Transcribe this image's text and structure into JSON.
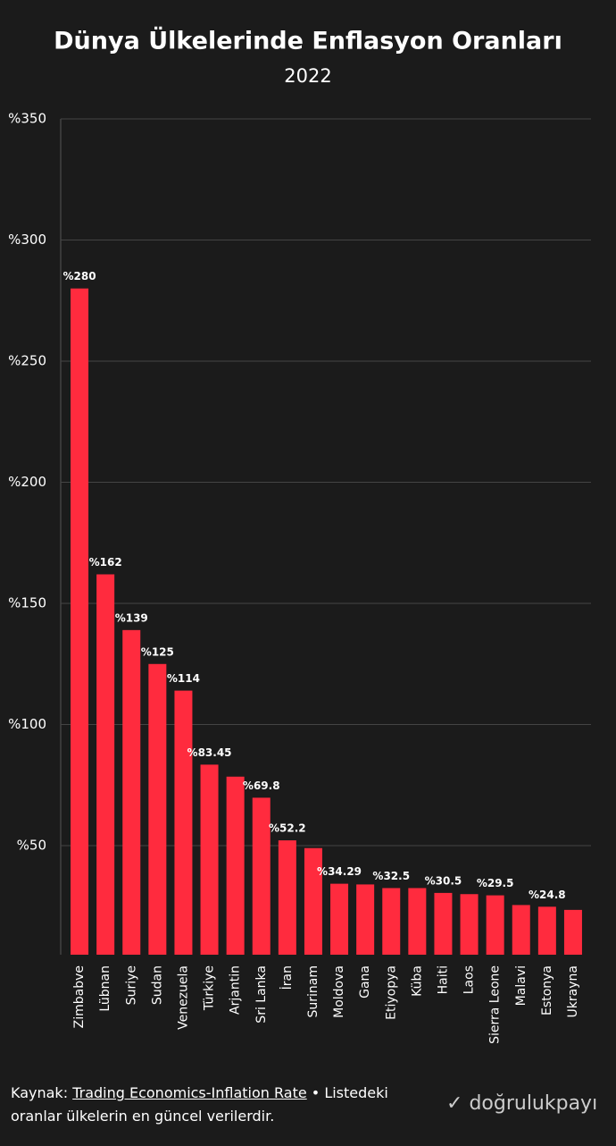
{
  "chart_data": {
    "type": "bar",
    "title": "Dünya Ülkelerinde Enflasyon Oranları",
    "subtitle": "2022",
    "categories": [
      "Zimbabve",
      "Lübnan",
      "Suriye",
      "Sudan",
      "Venezuela",
      "Türkiye",
      "Arjantin",
      "Sri Lanka",
      "İran",
      "Surinam",
      "Moldova",
      "Gana",
      "Etiyopya",
      "Küba",
      "Haiti",
      "Laos",
      "Sierra Leone",
      "Malavi",
      "Estonya",
      "Ukrayna"
    ],
    "values": [
      280,
      162,
      139,
      125,
      114,
      83.45,
      78.5,
      69.8,
      52.2,
      49,
      34.29,
      34,
      32.5,
      32.5,
      30.5,
      30,
      29.5,
      25.5,
      24.8,
      23.5
    ],
    "value_labels": [
      "%280",
      "%162",
      "%139",
      "%125",
      "%114",
      "%83.45",
      null,
      "%69.8",
      "%52.2",
      null,
      "%34.29",
      null,
      "%32.5",
      null,
      "%30.5",
      null,
      "%29.5",
      null,
      "%24.8",
      null
    ],
    "color": "#ff2b3e",
    "ylim": [
      5,
      350
    ],
    "yticks": [
      {
        "value": 50,
        "label": "%50"
      },
      {
        "value": 100,
        "label": "%100"
      },
      {
        "value": 150,
        "label": "%150"
      },
      {
        "value": 200,
        "label": "%200"
      },
      {
        "value": 250,
        "label": "%250"
      },
      {
        "value": 300,
        "label": "%300"
      },
      {
        "value": 350,
        "label": "%350"
      }
    ],
    "grid": true
  },
  "footer": {
    "source_prefix": "Kaynak:",
    "source_link": "Trading Economics-Inflation Rate",
    "note": "• Listedeki oranlar ülkelerin en güncel verilerdir.",
    "brand": "doğrulukpayı"
  }
}
